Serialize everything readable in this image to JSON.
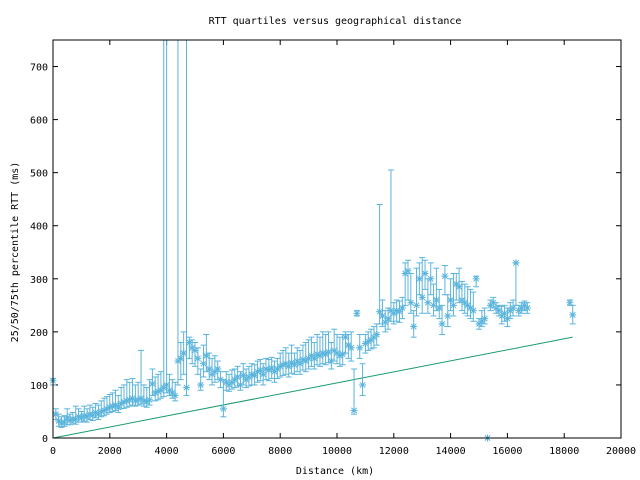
{
  "chart_data": {
    "type": "scatter",
    "title": "RTT quartiles versus geographical distance",
    "xlabel": "Distance (km)",
    "ylabel": "25/50/75th percentile RTT (ms)",
    "xlim": [
      0,
      20000
    ],
    "ylim": [
      0,
      750
    ],
    "xticks": [
      0,
      2000,
      4000,
      6000,
      8000,
      10000,
      12000,
      14000,
      16000,
      18000,
      20000
    ],
    "yticks": [
      0,
      100,
      200,
      300,
      400,
      500,
      600,
      700
    ],
    "grid": false,
    "legend": "none",
    "colors": {
      "points": "#5ab4dc",
      "line": "#1a9a6e",
      "axis": "#000000"
    },
    "series": [
      {
        "marker": "star",
        "points": [
          [
            0,
            108,
            100,
            112
          ],
          [
            100,
            45,
            35,
            55
          ],
          [
            200,
            32,
            22,
            45
          ],
          [
            300,
            28,
            20,
            40
          ],
          [
            400,
            30,
            22,
            42
          ],
          [
            500,
            38,
            25,
            55
          ],
          [
            600,
            33,
            25,
            45
          ],
          [
            700,
            36,
            28,
            48
          ],
          [
            800,
            35,
            26,
            60
          ],
          [
            900,
            40,
            30,
            55
          ],
          [
            1000,
            38,
            30,
            50
          ],
          [
            1100,
            42,
            32,
            60
          ],
          [
            1200,
            40,
            30,
            55
          ],
          [
            1300,
            45,
            35,
            62
          ],
          [
            1400,
            43,
            33,
            58
          ],
          [
            1500,
            48,
            38,
            65
          ],
          [
            1600,
            45,
            35,
            62
          ],
          [
            1700,
            50,
            40,
            70
          ],
          [
            1800,
            52,
            42,
            75
          ],
          [
            1900,
            55,
            45,
            78
          ],
          [
            2000,
            58,
            48,
            82
          ],
          [
            2100,
            60,
            50,
            85
          ],
          [
            2200,
            62,
            52,
            90
          ],
          [
            2300,
            58,
            48,
            80
          ],
          [
            2400,
            65,
            55,
            95
          ],
          [
            2500,
            68,
            56,
            100
          ],
          [
            2600,
            70,
            58,
            110
          ],
          [
            2700,
            72,
            60,
            105
          ],
          [
            2800,
            75,
            62,
            112
          ],
          [
            2900,
            70,
            60,
            100
          ],
          [
            3000,
            72,
            62,
            105
          ],
          [
            3100,
            75,
            64,
            165
          ],
          [
            3200,
            70,
            60,
            100
          ],
          [
            3300,
            68,
            58,
            95
          ],
          [
            3400,
            72,
            62,
            110
          ],
          [
            3500,
            102,
            80,
            130
          ],
          [
            3600,
            85,
            70,
            115
          ],
          [
            3700,
            88,
            72,
            120
          ],
          [
            3800,
            90,
            75,
            125
          ],
          [
            3900,
            95,
            78,
            750
          ],
          [
            4000,
            100,
            85,
            750
          ],
          [
            4100,
            90,
            80,
            120
          ],
          [
            4200,
            85,
            75,
            110
          ],
          [
            4300,
            80,
            70,
            105
          ],
          [
            4400,
            145,
            100,
            750
          ],
          [
            4500,
            150,
            110,
            180
          ],
          [
            4600,
            160,
            120,
            200
          ],
          [
            4700,
            95,
            80,
            750
          ],
          [
            4800,
            180,
            150,
            190
          ],
          [
            4900,
            170,
            140,
            185
          ],
          [
            5000,
            165,
            135,
            180
          ],
          [
            5100,
            150,
            120,
            170
          ],
          [
            5200,
            100,
            90,
            130
          ],
          [
            5300,
            140,
            115,
            175
          ],
          [
            5400,
            155,
            125,
            195
          ],
          [
            5500,
            130,
            110,
            160
          ],
          [
            5600,
            120,
            100,
            150
          ],
          [
            5700,
            125,
            105,
            155
          ],
          [
            5800,
            130,
            110,
            145
          ],
          [
            5900,
            110,
            95,
            125
          ],
          [
            6000,
            55,
            40,
            110
          ],
          [
            6100,
            105,
            90,
            125
          ],
          [
            6200,
            100,
            88,
            120
          ],
          [
            6300,
            105,
            92,
            128
          ],
          [
            6400,
            110,
            95,
            130
          ],
          [
            6500,
            115,
            98,
            135
          ],
          [
            6600,
            100,
            90,
            125
          ],
          [
            6700,
            118,
            100,
            140
          ],
          [
            6800,
            110,
            95,
            130
          ],
          [
            6900,
            115,
            98,
            135
          ],
          [
            7000,
            120,
            100,
            140
          ],
          [
            7100,
            118,
            100,
            138
          ],
          [
            7200,
            125,
            105,
            145
          ],
          [
            7300,
            128,
            108,
            148
          ],
          [
            7400,
            120,
            100,
            140
          ],
          [
            7500,
            130,
            110,
            150
          ],
          [
            7600,
            128,
            108,
            148
          ],
          [
            7700,
            132,
            112,
            152
          ],
          [
            7800,
            125,
            105,
            145
          ],
          [
            7900,
            130,
            112,
            150
          ],
          [
            8000,
            135,
            115,
            160
          ],
          [
            8100,
            138,
            118,
            165
          ],
          [
            8200,
            140,
            120,
            170
          ],
          [
            8300,
            135,
            115,
            160
          ],
          [
            8400,
            142,
            122,
            175
          ],
          [
            8500,
            138,
            120,
            160
          ],
          [
            8600,
            145,
            125,
            170
          ],
          [
            8700,
            140,
            120,
            165
          ],
          [
            8800,
            148,
            128,
            175
          ],
          [
            8900,
            145,
            125,
            180
          ],
          [
            9000,
            150,
            130,
            185
          ],
          [
            9100,
            155,
            135,
            190
          ],
          [
            9200,
            150,
            130,
            180
          ],
          [
            9300,
            158,
            138,
            195
          ],
          [
            9400,
            155,
            135,
            190
          ],
          [
            9500,
            160,
            140,
            200
          ],
          [
            9600,
            158,
            138,
            195
          ],
          [
            9700,
            162,
            142,
            200
          ],
          [
            9800,
            145,
            130,
            180
          ],
          [
            9900,
            165,
            145,
            205
          ],
          [
            10000,
            160,
            140,
            195
          ],
          [
            10100,
            155,
            135,
            190
          ],
          [
            10200,
            158,
            138,
            195
          ],
          [
            10300,
            190,
            160,
            200
          ],
          [
            10400,
            175,
            150,
            195
          ],
          [
            10500,
            170,
            145,
            200
          ],
          [
            10600,
            52,
            45,
            130
          ],
          [
            10700,
            235,
            230,
            240
          ],
          [
            10800,
            170,
            150,
            195
          ],
          [
            10900,
            100,
            80,
            140
          ],
          [
            11000,
            178,
            160,
            195
          ],
          [
            11100,
            182,
            165,
            200
          ],
          [
            11200,
            185,
            168,
            205
          ],
          [
            11300,
            190,
            170,
            210
          ],
          [
            11400,
            195,
            175,
            215
          ],
          [
            11500,
            238,
            215,
            440
          ],
          [
            11600,
            230,
            210,
            260
          ],
          [
            11700,
            218,
            200,
            240
          ],
          [
            11800,
            225,
            205,
            245
          ],
          [
            11900,
            240,
            220,
            505
          ],
          [
            12000,
            235,
            215,
            255
          ],
          [
            12100,
            240,
            220,
            260
          ],
          [
            12200,
            238,
            218,
            258
          ],
          [
            12300,
            245,
            225,
            265
          ],
          [
            12400,
            310,
            250,
            330
          ],
          [
            12500,
            315,
            260,
            335
          ],
          [
            12600,
            255,
            235,
            310
          ],
          [
            12700,
            210,
            190,
            240
          ],
          [
            12800,
            250,
            230,
            320
          ],
          [
            12900,
            300,
            270,
            330
          ],
          [
            13000,
            265,
            235,
            340
          ],
          [
            13100,
            310,
            280,
            335
          ],
          [
            13200,
            255,
            235,
            300
          ],
          [
            13300,
            300,
            270,
            330
          ],
          [
            13400,
            250,
            230,
            290
          ],
          [
            13500,
            260,
            240,
            320
          ],
          [
            13600,
            245,
            225,
            280
          ],
          [
            13700,
            215,
            195,
            250
          ],
          [
            13800,
            305,
            270,
            325
          ],
          [
            13900,
            230,
            210,
            270
          ],
          [
            14000,
            260,
            240,
            300
          ],
          [
            14100,
            250,
            230,
            310
          ],
          [
            14200,
            290,
            260,
            310
          ],
          [
            14300,
            285,
            255,
            320
          ],
          [
            14400,
            260,
            240,
            295
          ],
          [
            14500,
            255,
            235,
            290
          ],
          [
            14600,
            250,
            230,
            285
          ],
          [
            14700,
            245,
            225,
            280
          ],
          [
            14800,
            240,
            220,
            275
          ],
          [
            14900,
            300,
            285,
            305
          ],
          [
            15000,
            215,
            205,
            225
          ],
          [
            15100,
            220,
            210,
            240
          ],
          [
            15200,
            225,
            215,
            245
          ],
          [
            15300,
            0,
            0,
            0
          ],
          [
            15400,
            250,
            240,
            260
          ],
          [
            15500,
            255,
            245,
            265
          ],
          [
            15600,
            245,
            235,
            255
          ],
          [
            15700,
            240,
            230,
            250
          ],
          [
            15800,
            230,
            215,
            248
          ],
          [
            15900,
            235,
            220,
            250
          ],
          [
            16000,
            225,
            210,
            245
          ],
          [
            16100,
            240,
            225,
            255
          ],
          [
            16200,
            245,
            230,
            260
          ],
          [
            16300,
            330,
            250,
            330
          ],
          [
            16400,
            240,
            230,
            250
          ],
          [
            16500,
            245,
            235,
            255
          ],
          [
            16600,
            250,
            240,
            258
          ],
          [
            16700,
            245,
            235,
            255
          ],
          [
            18200,
            255,
            250,
            260
          ],
          [
            18300,
            232,
            215,
            250
          ]
        ]
      },
      {
        "type": "line",
        "x": [
          0,
          18300
        ],
        "y": [
          0,
          190
        ]
      }
    ]
  }
}
